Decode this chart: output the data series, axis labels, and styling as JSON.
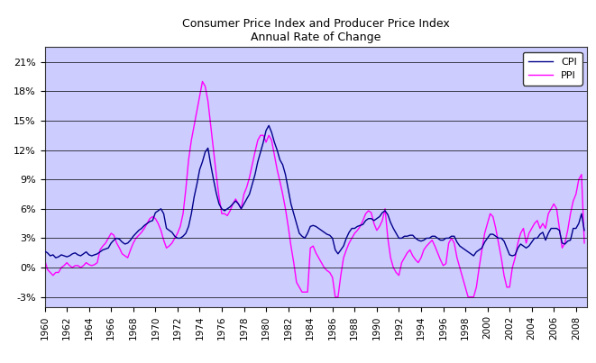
{
  "title_line1": "Consumer Price Index and Producer Price Index",
  "title_line2": "Annual Rate of Change",
  "cpi_label": "CPI",
  "ppi_label": "PPI",
  "cpi_color": "#00008B",
  "ppi_color": "#FF00FF",
  "background_color": "#CCCCFF",
  "fig_facecolor": "#FFFFFF",
  "xlim": [
    1960,
    2009
  ],
  "ylim": [
    -0.04,
    0.225
  ],
  "yticks": [
    -0.03,
    0.0,
    0.03,
    0.06,
    0.09,
    0.12,
    0.15,
    0.18,
    0.21
  ],
  "ytick_labels": [
    "-3%",
    "0%",
    "3%",
    "6%",
    "9%",
    "12%",
    "15%",
    "18%",
    "21%"
  ],
  "xticks": [
    1960,
    1962,
    1964,
    1966,
    1968,
    1970,
    1972,
    1974,
    1976,
    1978,
    1980,
    1982,
    1984,
    1986,
    1988,
    1990,
    1992,
    1994,
    1996,
    1998,
    2000,
    2002,
    2004,
    2006,
    2008
  ],
  "cpi_data": [
    [
      1960.0,
      0.0167
    ],
    [
      1960.25,
      0.015
    ],
    [
      1960.5,
      0.012
    ],
    [
      1960.75,
      0.013
    ],
    [
      1961.0,
      0.01
    ],
    [
      1961.25,
      0.011
    ],
    [
      1961.5,
      0.013
    ],
    [
      1961.75,
      0.012
    ],
    [
      1962.0,
      0.011
    ],
    [
      1962.25,
      0.012
    ],
    [
      1962.5,
      0.014
    ],
    [
      1962.75,
      0.015
    ],
    [
      1963.0,
      0.013
    ],
    [
      1963.25,
      0.012
    ],
    [
      1963.5,
      0.014
    ],
    [
      1963.75,
      0.016
    ],
    [
      1964.0,
      0.013
    ],
    [
      1964.25,
      0.012
    ],
    [
      1964.5,
      0.013
    ],
    [
      1964.75,
      0.014
    ],
    [
      1965.0,
      0.016
    ],
    [
      1965.25,
      0.018
    ],
    [
      1965.5,
      0.019
    ],
    [
      1965.75,
      0.02
    ],
    [
      1966.0,
      0.025
    ],
    [
      1966.25,
      0.028
    ],
    [
      1966.5,
      0.03
    ],
    [
      1966.75,
      0.029
    ],
    [
      1967.0,
      0.026
    ],
    [
      1967.25,
      0.024
    ],
    [
      1967.5,
      0.025
    ],
    [
      1967.75,
      0.028
    ],
    [
      1968.0,
      0.032
    ],
    [
      1968.25,
      0.035
    ],
    [
      1968.5,
      0.038
    ],
    [
      1968.75,
      0.04
    ],
    [
      1969.0,
      0.043
    ],
    [
      1969.25,
      0.045
    ],
    [
      1969.5,
      0.047
    ],
    [
      1969.75,
      0.048
    ],
    [
      1970.0,
      0.056
    ],
    [
      1970.25,
      0.058
    ],
    [
      1970.5,
      0.06
    ],
    [
      1970.75,
      0.055
    ],
    [
      1971.0,
      0.04
    ],
    [
      1971.25,
      0.038
    ],
    [
      1971.5,
      0.036
    ],
    [
      1971.75,
      0.032
    ],
    [
      1972.0,
      0.03
    ],
    [
      1972.25,
      0.03
    ],
    [
      1972.5,
      0.032
    ],
    [
      1972.75,
      0.035
    ],
    [
      1973.0,
      0.042
    ],
    [
      1973.25,
      0.055
    ],
    [
      1973.5,
      0.072
    ],
    [
      1973.75,
      0.085
    ],
    [
      1974.0,
      0.1
    ],
    [
      1974.25,
      0.108
    ],
    [
      1974.5,
      0.118
    ],
    [
      1974.75,
      0.122
    ],
    [
      1975.0,
      0.105
    ],
    [
      1975.25,
      0.09
    ],
    [
      1975.5,
      0.076
    ],
    [
      1975.75,
      0.065
    ],
    [
      1976.0,
      0.06
    ],
    [
      1976.25,
      0.058
    ],
    [
      1976.5,
      0.06
    ],
    [
      1976.75,
      0.062
    ],
    [
      1977.0,
      0.065
    ],
    [
      1977.25,
      0.068
    ],
    [
      1977.5,
      0.065
    ],
    [
      1977.75,
      0.06
    ],
    [
      1978.0,
      0.065
    ],
    [
      1978.25,
      0.07
    ],
    [
      1978.5,
      0.075
    ],
    [
      1978.75,
      0.085
    ],
    [
      1979.0,
      0.095
    ],
    [
      1979.25,
      0.108
    ],
    [
      1979.5,
      0.118
    ],
    [
      1979.75,
      0.128
    ],
    [
      1980.0,
      0.14
    ],
    [
      1980.25,
      0.145
    ],
    [
      1980.5,
      0.138
    ],
    [
      1980.75,
      0.128
    ],
    [
      1981.0,
      0.12
    ],
    [
      1981.25,
      0.11
    ],
    [
      1981.5,
      0.105
    ],
    [
      1981.75,
      0.095
    ],
    [
      1982.0,
      0.08
    ],
    [
      1982.25,
      0.065
    ],
    [
      1982.5,
      0.055
    ],
    [
      1982.75,
      0.045
    ],
    [
      1983.0,
      0.035
    ],
    [
      1983.25,
      0.032
    ],
    [
      1983.5,
      0.03
    ],
    [
      1983.75,
      0.035
    ],
    [
      1984.0,
      0.042
    ],
    [
      1984.25,
      0.043
    ],
    [
      1984.5,
      0.042
    ],
    [
      1984.75,
      0.04
    ],
    [
      1985.0,
      0.038
    ],
    [
      1985.25,
      0.036
    ],
    [
      1985.5,
      0.034
    ],
    [
      1985.75,
      0.033
    ],
    [
      1986.0,
      0.03
    ],
    [
      1986.25,
      0.018
    ],
    [
      1986.5,
      0.014
    ],
    [
      1986.75,
      0.018
    ],
    [
      1987.0,
      0.022
    ],
    [
      1987.25,
      0.03
    ],
    [
      1987.5,
      0.036
    ],
    [
      1987.75,
      0.04
    ],
    [
      1988.0,
      0.04
    ],
    [
      1988.25,
      0.042
    ],
    [
      1988.5,
      0.043
    ],
    [
      1988.75,
      0.044
    ],
    [
      1989.0,
      0.048
    ],
    [
      1989.25,
      0.05
    ],
    [
      1989.5,
      0.05
    ],
    [
      1989.75,
      0.048
    ],
    [
      1990.0,
      0.05
    ],
    [
      1990.25,
      0.052
    ],
    [
      1990.5,
      0.056
    ],
    [
      1990.75,
      0.058
    ],
    [
      1991.0,
      0.054
    ],
    [
      1991.25,
      0.046
    ],
    [
      1991.5,
      0.04
    ],
    [
      1991.75,
      0.035
    ],
    [
      1992.0,
      0.03
    ],
    [
      1992.25,
      0.03
    ],
    [
      1992.5,
      0.032
    ],
    [
      1992.75,
      0.032
    ],
    [
      1993.0,
      0.033
    ],
    [
      1993.25,
      0.033
    ],
    [
      1993.5,
      0.03
    ],
    [
      1993.75,
      0.028
    ],
    [
      1994.0,
      0.027
    ],
    [
      1994.25,
      0.028
    ],
    [
      1994.5,
      0.03
    ],
    [
      1994.75,
      0.03
    ],
    [
      1995.0,
      0.032
    ],
    [
      1995.25,
      0.032
    ],
    [
      1995.5,
      0.03
    ],
    [
      1995.75,
      0.028
    ],
    [
      1996.0,
      0.028
    ],
    [
      1996.25,
      0.03
    ],
    [
      1996.5,
      0.03
    ],
    [
      1996.75,
      0.032
    ],
    [
      1997.0,
      0.032
    ],
    [
      1997.25,
      0.026
    ],
    [
      1997.5,
      0.022
    ],
    [
      1997.75,
      0.02
    ],
    [
      1998.0,
      0.018
    ],
    [
      1998.25,
      0.016
    ],
    [
      1998.5,
      0.014
    ],
    [
      1998.75,
      0.012
    ],
    [
      1999.0,
      0.016
    ],
    [
      1999.25,
      0.018
    ],
    [
      1999.5,
      0.02
    ],
    [
      1999.75,
      0.026
    ],
    [
      2000.0,
      0.03
    ],
    [
      2000.25,
      0.034
    ],
    [
      2000.5,
      0.034
    ],
    [
      2000.75,
      0.032
    ],
    [
      2001.0,
      0.03
    ],
    [
      2001.25,
      0.03
    ],
    [
      2001.5,
      0.027
    ],
    [
      2001.75,
      0.02
    ],
    [
      2002.0,
      0.013
    ],
    [
      2002.25,
      0.012
    ],
    [
      2002.5,
      0.013
    ],
    [
      2002.75,
      0.02
    ],
    [
      2003.0,
      0.024
    ],
    [
      2003.25,
      0.022
    ],
    [
      2003.5,
      0.02
    ],
    [
      2003.75,
      0.022
    ],
    [
      2004.0,
      0.026
    ],
    [
      2004.25,
      0.03
    ],
    [
      2004.5,
      0.03
    ],
    [
      2004.75,
      0.034
    ],
    [
      2005.0,
      0.036
    ],
    [
      2005.25,
      0.028
    ],
    [
      2005.5,
      0.035
    ],
    [
      2005.75,
      0.04
    ],
    [
      2006.0,
      0.04
    ],
    [
      2006.25,
      0.04
    ],
    [
      2006.5,
      0.038
    ],
    [
      2006.75,
      0.025
    ],
    [
      2007.0,
      0.024
    ],
    [
      2007.25,
      0.027
    ],
    [
      2007.5,
      0.028
    ],
    [
      2007.75,
      0.04
    ],
    [
      2008.0,
      0.04
    ],
    [
      2008.25,
      0.045
    ],
    [
      2008.5,
      0.055
    ],
    [
      2008.75,
      0.038
    ]
  ],
  "ppi_data": [
    [
      1960.0,
      0.008
    ],
    [
      1960.25,
      -0.002
    ],
    [
      1960.5,
      -0.005
    ],
    [
      1960.75,
      -0.008
    ],
    [
      1961.0,
      -0.005
    ],
    [
      1961.25,
      -0.005
    ],
    [
      1961.5,
      0.0
    ],
    [
      1961.75,
      0.002
    ],
    [
      1962.0,
      0.005
    ],
    [
      1962.25,
      0.002
    ],
    [
      1962.5,
      0.0
    ],
    [
      1962.75,
      0.002
    ],
    [
      1963.0,
      0.002
    ],
    [
      1963.25,
      0.0
    ],
    [
      1963.5,
      0.002
    ],
    [
      1963.75,
      0.005
    ],
    [
      1964.0,
      0.003
    ],
    [
      1964.25,
      0.002
    ],
    [
      1964.5,
      0.003
    ],
    [
      1964.75,
      0.005
    ],
    [
      1965.0,
      0.018
    ],
    [
      1965.25,
      0.022
    ],
    [
      1965.5,
      0.025
    ],
    [
      1965.75,
      0.03
    ],
    [
      1966.0,
      0.035
    ],
    [
      1966.25,
      0.033
    ],
    [
      1966.5,
      0.025
    ],
    [
      1966.75,
      0.02
    ],
    [
      1967.0,
      0.014
    ],
    [
      1967.25,
      0.012
    ],
    [
      1967.5,
      0.01
    ],
    [
      1967.75,
      0.018
    ],
    [
      1968.0,
      0.025
    ],
    [
      1968.25,
      0.03
    ],
    [
      1968.5,
      0.033
    ],
    [
      1968.75,
      0.036
    ],
    [
      1969.0,
      0.04
    ],
    [
      1969.25,
      0.045
    ],
    [
      1969.5,
      0.05
    ],
    [
      1969.75,
      0.052
    ],
    [
      1970.0,
      0.05
    ],
    [
      1970.25,
      0.045
    ],
    [
      1970.5,
      0.038
    ],
    [
      1970.75,
      0.028
    ],
    [
      1971.0,
      0.02
    ],
    [
      1971.25,
      0.022
    ],
    [
      1971.5,
      0.025
    ],
    [
      1971.75,
      0.03
    ],
    [
      1972.0,
      0.035
    ],
    [
      1972.25,
      0.042
    ],
    [
      1972.5,
      0.055
    ],
    [
      1972.75,
      0.08
    ],
    [
      1973.0,
      0.11
    ],
    [
      1973.25,
      0.13
    ],
    [
      1973.5,
      0.145
    ],
    [
      1973.75,
      0.16
    ],
    [
      1974.0,
      0.175
    ],
    [
      1974.25,
      0.19
    ],
    [
      1974.5,
      0.185
    ],
    [
      1974.75,
      0.17
    ],
    [
      1975.0,
      0.145
    ],
    [
      1975.25,
      0.12
    ],
    [
      1975.5,
      0.095
    ],
    [
      1975.75,
      0.072
    ],
    [
      1976.0,
      0.055
    ],
    [
      1976.25,
      0.055
    ],
    [
      1976.5,
      0.053
    ],
    [
      1976.75,
      0.058
    ],
    [
      1977.0,
      0.065
    ],
    [
      1977.25,
      0.07
    ],
    [
      1977.5,
      0.065
    ],
    [
      1977.75,
      0.06
    ],
    [
      1978.0,
      0.075
    ],
    [
      1978.25,
      0.082
    ],
    [
      1978.5,
      0.092
    ],
    [
      1978.75,
      0.105
    ],
    [
      1979.0,
      0.118
    ],
    [
      1979.25,
      0.13
    ],
    [
      1979.5,
      0.135
    ],
    [
      1979.75,
      0.135
    ],
    [
      1980.0,
      0.128
    ],
    [
      1980.25,
      0.135
    ],
    [
      1980.5,
      0.13
    ],
    [
      1980.75,
      0.115
    ],
    [
      1981.0,
      0.1
    ],
    [
      1981.25,
      0.088
    ],
    [
      1981.5,
      0.075
    ],
    [
      1981.75,
      0.06
    ],
    [
      1982.0,
      0.042
    ],
    [
      1982.25,
      0.022
    ],
    [
      1982.5,
      0.005
    ],
    [
      1982.75,
      -0.015
    ],
    [
      1983.0,
      -0.02
    ],
    [
      1983.25,
      -0.025
    ],
    [
      1983.5,
      -0.025
    ],
    [
      1983.75,
      -0.025
    ],
    [
      1984.0,
      0.02
    ],
    [
      1984.25,
      0.022
    ],
    [
      1984.5,
      0.015
    ],
    [
      1984.75,
      0.01
    ],
    [
      1985.0,
      0.005
    ],
    [
      1985.25,
      0.0
    ],
    [
      1985.5,
      -0.003
    ],
    [
      1985.75,
      -0.005
    ],
    [
      1986.0,
      -0.01
    ],
    [
      1986.25,
      -0.03
    ],
    [
      1986.5,
      -0.03
    ],
    [
      1986.75,
      -0.008
    ],
    [
      1987.0,
      0.01
    ],
    [
      1987.25,
      0.018
    ],
    [
      1987.5,
      0.025
    ],
    [
      1987.75,
      0.03
    ],
    [
      1988.0,
      0.035
    ],
    [
      1988.25,
      0.038
    ],
    [
      1988.5,
      0.042
    ],
    [
      1988.75,
      0.048
    ],
    [
      1989.0,
      0.055
    ],
    [
      1989.25,
      0.058
    ],
    [
      1989.5,
      0.056
    ],
    [
      1989.75,
      0.045
    ],
    [
      1990.0,
      0.038
    ],
    [
      1990.25,
      0.042
    ],
    [
      1990.5,
      0.048
    ],
    [
      1990.75,
      0.06
    ],
    [
      1991.0,
      0.03
    ],
    [
      1991.25,
      0.01
    ],
    [
      1991.5,
      0.0
    ],
    [
      1991.75,
      -0.005
    ],
    [
      1992.0,
      -0.008
    ],
    [
      1992.25,
      0.005
    ],
    [
      1992.5,
      0.01
    ],
    [
      1992.75,
      0.015
    ],
    [
      1993.0,
      0.018
    ],
    [
      1993.25,
      0.012
    ],
    [
      1993.5,
      0.008
    ],
    [
      1993.75,
      0.005
    ],
    [
      1994.0,
      0.01
    ],
    [
      1994.25,
      0.018
    ],
    [
      1994.5,
      0.022
    ],
    [
      1994.75,
      0.025
    ],
    [
      1995.0,
      0.028
    ],
    [
      1995.25,
      0.022
    ],
    [
      1995.5,
      0.015
    ],
    [
      1995.75,
      0.008
    ],
    [
      1996.0,
      0.002
    ],
    [
      1996.25,
      0.004
    ],
    [
      1996.5,
      0.025
    ],
    [
      1996.75,
      0.03
    ],
    [
      1997.0,
      0.025
    ],
    [
      1997.25,
      0.01
    ],
    [
      1997.5,
      0.0
    ],
    [
      1997.75,
      -0.01
    ],
    [
      1998.0,
      -0.02
    ],
    [
      1998.25,
      -0.03
    ],
    [
      1998.5,
      -0.03
    ],
    [
      1998.75,
      -0.03
    ],
    [
      1999.0,
      -0.02
    ],
    [
      1999.25,
      0.0
    ],
    [
      1999.5,
      0.018
    ],
    [
      1999.75,
      0.035
    ],
    [
      2000.0,
      0.045
    ],
    [
      2000.25,
      0.055
    ],
    [
      2000.5,
      0.052
    ],
    [
      2000.75,
      0.04
    ],
    [
      2001.0,
      0.025
    ],
    [
      2001.25,
      0.01
    ],
    [
      2001.5,
      -0.008
    ],
    [
      2001.75,
      -0.02
    ],
    [
      2002.0,
      -0.02
    ],
    [
      2002.25,
      0.0
    ],
    [
      2002.5,
      0.01
    ],
    [
      2002.75,
      0.025
    ],
    [
      2003.0,
      0.035
    ],
    [
      2003.25,
      0.04
    ],
    [
      2003.5,
      0.025
    ],
    [
      2003.75,
      0.035
    ],
    [
      2004.0,
      0.04
    ],
    [
      2004.25,
      0.045
    ],
    [
      2004.5,
      0.048
    ],
    [
      2004.75,
      0.04
    ],
    [
      2005.0,
      0.045
    ],
    [
      2005.25,
      0.04
    ],
    [
      2005.5,
      0.055
    ],
    [
      2005.75,
      0.06
    ],
    [
      2006.0,
      0.065
    ],
    [
      2006.25,
      0.06
    ],
    [
      2006.5,
      0.04
    ],
    [
      2006.75,
      0.02
    ],
    [
      2007.0,
      0.025
    ],
    [
      2007.25,
      0.038
    ],
    [
      2007.5,
      0.055
    ],
    [
      2007.75,
      0.068
    ],
    [
      2008.0,
      0.075
    ],
    [
      2008.25,
      0.09
    ],
    [
      2008.5,
      0.095
    ],
    [
      2008.75,
      0.025
    ]
  ]
}
